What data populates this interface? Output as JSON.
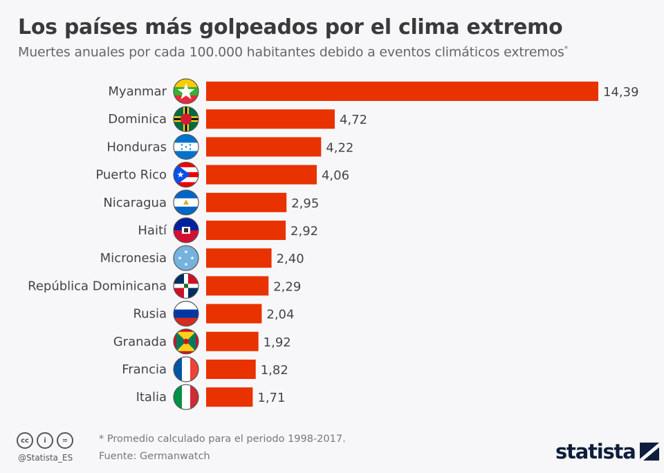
{
  "header": {
    "title": "Los países más golpeados por el clima extremo",
    "subtitle": "Muertes anuales por cada 100.000 habitantes debido a eventos climáticos extremos",
    "subtitle_mark": "*"
  },
  "chart_data": {
    "type": "bar",
    "orientation": "horizontal",
    "categories": [
      "Myanmar",
      "Dominica",
      "Honduras",
      "Puerto Rico",
      "Nicaragua",
      "Haití",
      "Micronesia",
      "República Dominicana",
      "Rusia",
      "Granada",
      "Francia",
      "Italia"
    ],
    "values": [
      14.39,
      4.72,
      4.22,
      4.06,
      2.95,
      2.92,
      2.4,
      2.29,
      2.04,
      1.92,
      1.82,
      1.71
    ],
    "value_labels": [
      "14,39",
      "4,72",
      "4,22",
      "4,06",
      "2,95",
      "2,92",
      "2,40",
      "2,29",
      "2,04",
      "1,92",
      "1,82",
      "1,71"
    ],
    "flag_icons": [
      "flag-myanmar",
      "flag-dominica",
      "flag-honduras",
      "flag-puerto-rico",
      "flag-nicaragua",
      "flag-haiti",
      "flag-micronesia",
      "flag-dominican-republic",
      "flag-russia",
      "flag-grenada",
      "flag-france",
      "flag-italy"
    ],
    "bar_color": "#e83200",
    "grid": false,
    "legend": "none"
  },
  "footer": {
    "footnote": "* Promedio calculado para el periodo 1998-2017.",
    "source": "Fuente: Germanwatch",
    "handle": "@Statista_ES",
    "license_icons": [
      "cc-icon",
      "by-icon",
      "nd-icon"
    ],
    "license_glyphs": [
      "cc",
      "i",
      "="
    ],
    "logo": "statista"
  }
}
